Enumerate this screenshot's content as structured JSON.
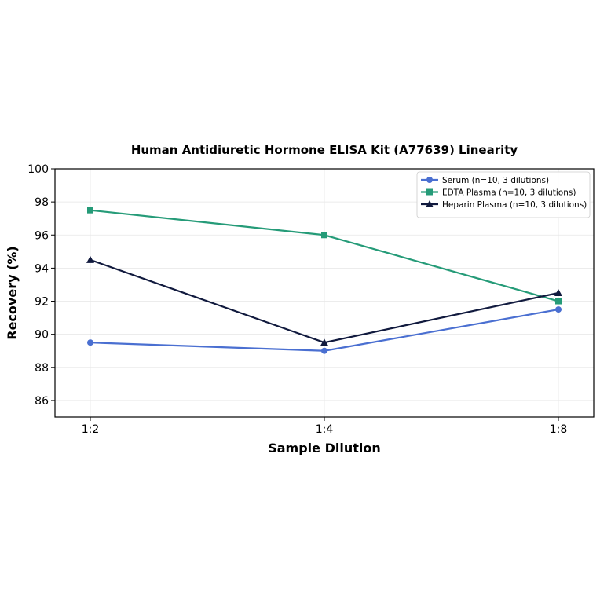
{
  "chart_data": {
    "type": "line",
    "title": "Human Antidiuretic Hormone ELISA Kit (A77639) Linearity",
    "xlabel": "Sample Dilution",
    "ylabel": "Recovery (%)",
    "categories": [
      "1:2",
      "1:4",
      "1:8"
    ],
    "ylim": [
      85,
      100
    ],
    "yticks": [
      86,
      88,
      90,
      92,
      94,
      96,
      98,
      100
    ],
    "grid": true,
    "legend_position": "top-right",
    "series": [
      {
        "name": "Serum (n=10, 3 dilutions)",
        "values": [
          89.5,
          89.0,
          91.5
        ],
        "color": "#4a6fd1",
        "marker": "circle"
      },
      {
        "name": "EDTA Plasma (n=10, 3 dilutions)",
        "values": [
          97.5,
          96.0,
          92.0
        ],
        "color": "#259b78",
        "marker": "square"
      },
      {
        "name": "Heparin Plasma (n=10, 3 dilutions)",
        "values": [
          94.5,
          89.5,
          92.5
        ],
        "color": "#111a3e",
        "marker": "triangle"
      }
    ]
  }
}
